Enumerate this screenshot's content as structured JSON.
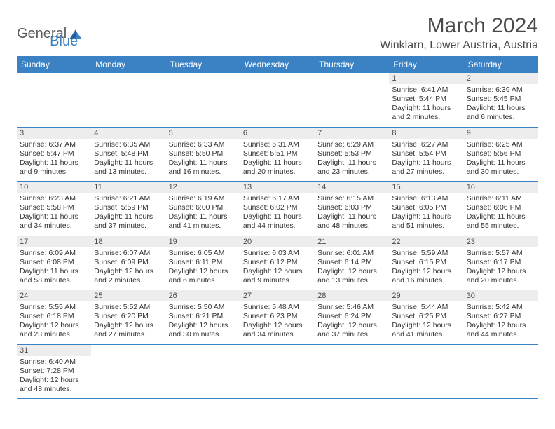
{
  "colors": {
    "header_bg": "#3b82c4",
    "header_text": "#ffffff",
    "daynum_bg": "#ededed",
    "cell_text": "#333333",
    "row_border": "#3b82c4",
    "thin_border": "#c9c9c9",
    "title_color": "#4a4a4a",
    "logo_gray": "#5a5a5a",
    "logo_blue": "#3b82c4",
    "page_bg": "#ffffff"
  },
  "logo": {
    "general": "General",
    "blue": "Blue"
  },
  "title": "March 2024",
  "location": "Winklarn, Lower Austria, Austria",
  "daysOfWeek": [
    "Sunday",
    "Monday",
    "Tuesday",
    "Wednesday",
    "Thursday",
    "Friday",
    "Saturday"
  ],
  "weeks": [
    [
      null,
      null,
      null,
      null,
      null,
      {
        "num": "1",
        "sunrise": "Sunrise: 6:41 AM",
        "sunset": "Sunset: 5:44 PM",
        "daylight1": "Daylight: 11 hours",
        "daylight2": "and 2 minutes."
      },
      {
        "num": "2",
        "sunrise": "Sunrise: 6:39 AM",
        "sunset": "Sunset: 5:45 PM",
        "daylight1": "Daylight: 11 hours",
        "daylight2": "and 6 minutes."
      }
    ],
    [
      {
        "num": "3",
        "sunrise": "Sunrise: 6:37 AM",
        "sunset": "Sunset: 5:47 PM",
        "daylight1": "Daylight: 11 hours",
        "daylight2": "and 9 minutes."
      },
      {
        "num": "4",
        "sunrise": "Sunrise: 6:35 AM",
        "sunset": "Sunset: 5:48 PM",
        "daylight1": "Daylight: 11 hours",
        "daylight2": "and 13 minutes."
      },
      {
        "num": "5",
        "sunrise": "Sunrise: 6:33 AM",
        "sunset": "Sunset: 5:50 PM",
        "daylight1": "Daylight: 11 hours",
        "daylight2": "and 16 minutes."
      },
      {
        "num": "6",
        "sunrise": "Sunrise: 6:31 AM",
        "sunset": "Sunset: 5:51 PM",
        "daylight1": "Daylight: 11 hours",
        "daylight2": "and 20 minutes."
      },
      {
        "num": "7",
        "sunrise": "Sunrise: 6:29 AM",
        "sunset": "Sunset: 5:53 PM",
        "daylight1": "Daylight: 11 hours",
        "daylight2": "and 23 minutes."
      },
      {
        "num": "8",
        "sunrise": "Sunrise: 6:27 AM",
        "sunset": "Sunset: 5:54 PM",
        "daylight1": "Daylight: 11 hours",
        "daylight2": "and 27 minutes."
      },
      {
        "num": "9",
        "sunrise": "Sunrise: 6:25 AM",
        "sunset": "Sunset: 5:56 PM",
        "daylight1": "Daylight: 11 hours",
        "daylight2": "and 30 minutes."
      }
    ],
    [
      {
        "num": "10",
        "sunrise": "Sunrise: 6:23 AM",
        "sunset": "Sunset: 5:58 PM",
        "daylight1": "Daylight: 11 hours",
        "daylight2": "and 34 minutes."
      },
      {
        "num": "11",
        "sunrise": "Sunrise: 6:21 AM",
        "sunset": "Sunset: 5:59 PM",
        "daylight1": "Daylight: 11 hours",
        "daylight2": "and 37 minutes."
      },
      {
        "num": "12",
        "sunrise": "Sunrise: 6:19 AM",
        "sunset": "Sunset: 6:00 PM",
        "daylight1": "Daylight: 11 hours",
        "daylight2": "and 41 minutes."
      },
      {
        "num": "13",
        "sunrise": "Sunrise: 6:17 AM",
        "sunset": "Sunset: 6:02 PM",
        "daylight1": "Daylight: 11 hours",
        "daylight2": "and 44 minutes."
      },
      {
        "num": "14",
        "sunrise": "Sunrise: 6:15 AM",
        "sunset": "Sunset: 6:03 PM",
        "daylight1": "Daylight: 11 hours",
        "daylight2": "and 48 minutes."
      },
      {
        "num": "15",
        "sunrise": "Sunrise: 6:13 AM",
        "sunset": "Sunset: 6:05 PM",
        "daylight1": "Daylight: 11 hours",
        "daylight2": "and 51 minutes."
      },
      {
        "num": "16",
        "sunrise": "Sunrise: 6:11 AM",
        "sunset": "Sunset: 6:06 PM",
        "daylight1": "Daylight: 11 hours",
        "daylight2": "and 55 minutes."
      }
    ],
    [
      {
        "num": "17",
        "sunrise": "Sunrise: 6:09 AM",
        "sunset": "Sunset: 6:08 PM",
        "daylight1": "Daylight: 11 hours",
        "daylight2": "and 58 minutes."
      },
      {
        "num": "18",
        "sunrise": "Sunrise: 6:07 AM",
        "sunset": "Sunset: 6:09 PM",
        "daylight1": "Daylight: 12 hours",
        "daylight2": "and 2 minutes."
      },
      {
        "num": "19",
        "sunrise": "Sunrise: 6:05 AM",
        "sunset": "Sunset: 6:11 PM",
        "daylight1": "Daylight: 12 hours",
        "daylight2": "and 6 minutes."
      },
      {
        "num": "20",
        "sunrise": "Sunrise: 6:03 AM",
        "sunset": "Sunset: 6:12 PM",
        "daylight1": "Daylight: 12 hours",
        "daylight2": "and 9 minutes."
      },
      {
        "num": "21",
        "sunrise": "Sunrise: 6:01 AM",
        "sunset": "Sunset: 6:14 PM",
        "daylight1": "Daylight: 12 hours",
        "daylight2": "and 13 minutes."
      },
      {
        "num": "22",
        "sunrise": "Sunrise: 5:59 AM",
        "sunset": "Sunset: 6:15 PM",
        "daylight1": "Daylight: 12 hours",
        "daylight2": "and 16 minutes."
      },
      {
        "num": "23",
        "sunrise": "Sunrise: 5:57 AM",
        "sunset": "Sunset: 6:17 PM",
        "daylight1": "Daylight: 12 hours",
        "daylight2": "and 20 minutes."
      }
    ],
    [
      {
        "num": "24",
        "sunrise": "Sunrise: 5:55 AM",
        "sunset": "Sunset: 6:18 PM",
        "daylight1": "Daylight: 12 hours",
        "daylight2": "and 23 minutes."
      },
      {
        "num": "25",
        "sunrise": "Sunrise: 5:52 AM",
        "sunset": "Sunset: 6:20 PM",
        "daylight1": "Daylight: 12 hours",
        "daylight2": "and 27 minutes."
      },
      {
        "num": "26",
        "sunrise": "Sunrise: 5:50 AM",
        "sunset": "Sunset: 6:21 PM",
        "daylight1": "Daylight: 12 hours",
        "daylight2": "and 30 minutes."
      },
      {
        "num": "27",
        "sunrise": "Sunrise: 5:48 AM",
        "sunset": "Sunset: 6:23 PM",
        "daylight1": "Daylight: 12 hours",
        "daylight2": "and 34 minutes."
      },
      {
        "num": "28",
        "sunrise": "Sunrise: 5:46 AM",
        "sunset": "Sunset: 6:24 PM",
        "daylight1": "Daylight: 12 hours",
        "daylight2": "and 37 minutes."
      },
      {
        "num": "29",
        "sunrise": "Sunrise: 5:44 AM",
        "sunset": "Sunset: 6:25 PM",
        "daylight1": "Daylight: 12 hours",
        "daylight2": "and 41 minutes."
      },
      {
        "num": "30",
        "sunrise": "Sunrise: 5:42 AM",
        "sunset": "Sunset: 6:27 PM",
        "daylight1": "Daylight: 12 hours",
        "daylight2": "and 44 minutes."
      }
    ],
    [
      {
        "num": "31",
        "sunrise": "Sunrise: 6:40 AM",
        "sunset": "Sunset: 7:28 PM",
        "daylight1": "Daylight: 12 hours",
        "daylight2": "and 48 minutes."
      },
      null,
      null,
      null,
      null,
      null,
      null
    ]
  ]
}
